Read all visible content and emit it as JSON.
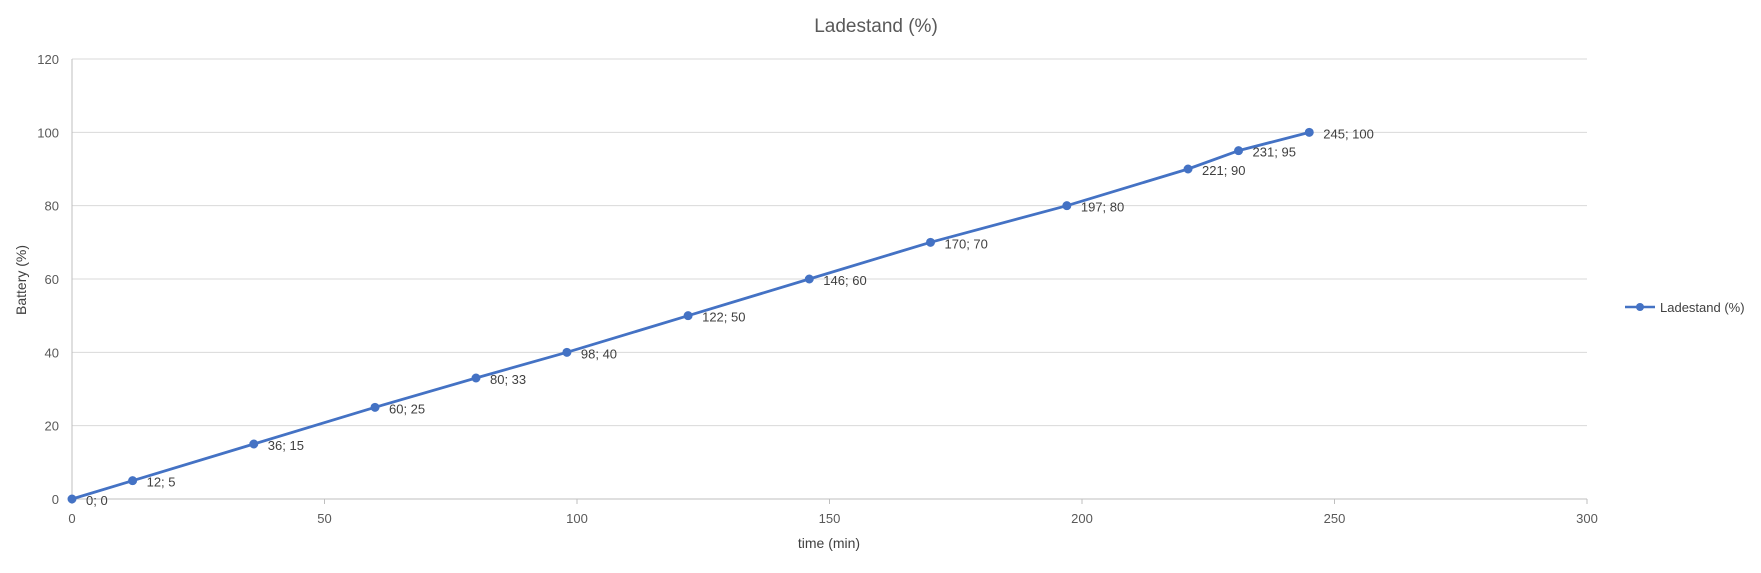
{
  "chart_data": {
    "type": "line",
    "title": "Ladestand (%)",
    "xlabel": "time (min)",
    "ylabel": "Battery (%)",
    "xlim": [
      0,
      300
    ],
    "ylim": [
      0,
      120
    ],
    "xticks": [
      0,
      50,
      100,
      150,
      200,
      250,
      300
    ],
    "yticks": [
      0,
      20,
      40,
      60,
      80,
      100,
      120
    ],
    "grid": "horizontal",
    "legend_position": "right",
    "series": [
      {
        "name": "Ladestand (%)",
        "color": "#4472c4",
        "x": [
          0,
          12,
          36,
          60,
          80,
          98,
          122,
          146,
          170,
          197,
          221,
          231,
          245
        ],
        "y": [
          0,
          5,
          15,
          25,
          33,
          40,
          50,
          60,
          70,
          80,
          90,
          95,
          100
        ],
        "labels": [
          "0; 0",
          "12; 5",
          "36; 15",
          "60; 25",
          "80; 33",
          "98; 40",
          "122; 50",
          "146; 60",
          "170; 70",
          "197; 80",
          "221; 90",
          "231; 95",
          "245; 100"
        ]
      }
    ]
  }
}
